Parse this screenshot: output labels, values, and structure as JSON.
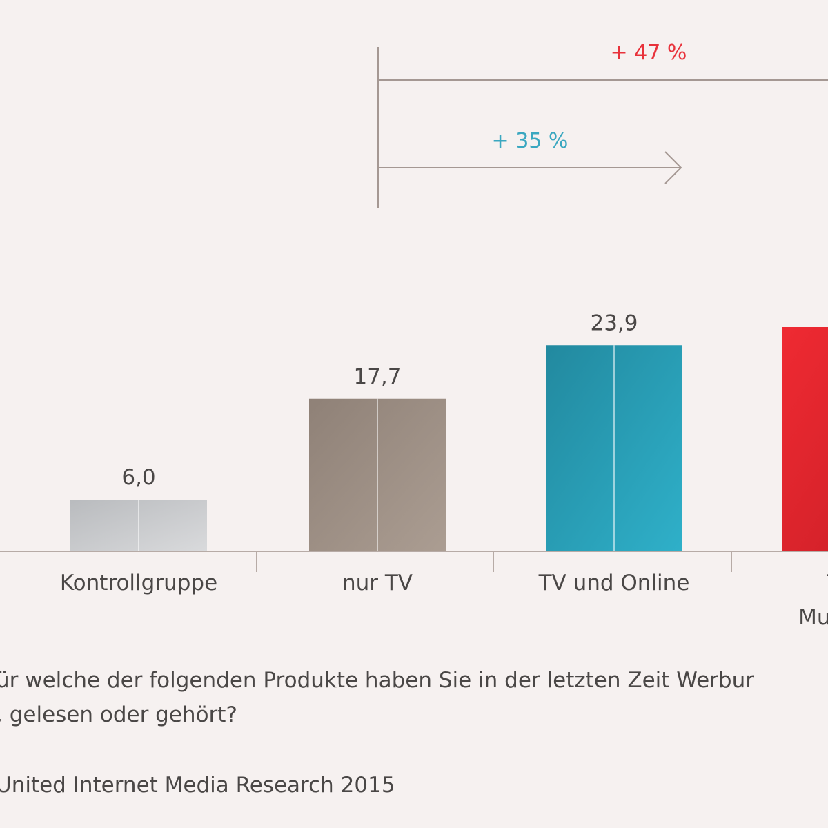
{
  "chart_data": {
    "type": "bar",
    "categories": [
      "Kontrollgruppe",
      "nur TV",
      "TV und Online",
      "TV u"
    ],
    "category_second_line": [
      "",
      "",
      "",
      "Multi"
    ],
    "values": [
      6.0,
      17.7,
      23.9,
      26.0
    ],
    "value_labels": [
      "6,0",
      "17,7",
      "23,9",
      ""
    ],
    "ylim": [
      0,
      26.0
    ],
    "grid": false,
    "legend": "none",
    "annotations": [
      {
        "text": "+ 47 %",
        "from": "nur TV",
        "to": "TV u",
        "color": "#e8323b"
      },
      {
        "text": "+ 35 %",
        "from": "nur TV",
        "to": "TV und Online",
        "color": "#3aa7c0"
      }
    ]
  },
  "colors": {
    "background": "#f6f1f0",
    "bars": [
      "#c7c8ca",
      "#9c8e84",
      "#2ba2bb",
      "#e0242c"
    ],
    "axis": "#b7aba6",
    "text": "#4a4746"
  },
  "footer": {
    "question_line1": "ür welche der folgenden Produkte haben Sie in der letzten Zeit Werbur",
    "question_line2": ", gelesen oder gehört?",
    "source": "United Internet Media Research 2015"
  }
}
